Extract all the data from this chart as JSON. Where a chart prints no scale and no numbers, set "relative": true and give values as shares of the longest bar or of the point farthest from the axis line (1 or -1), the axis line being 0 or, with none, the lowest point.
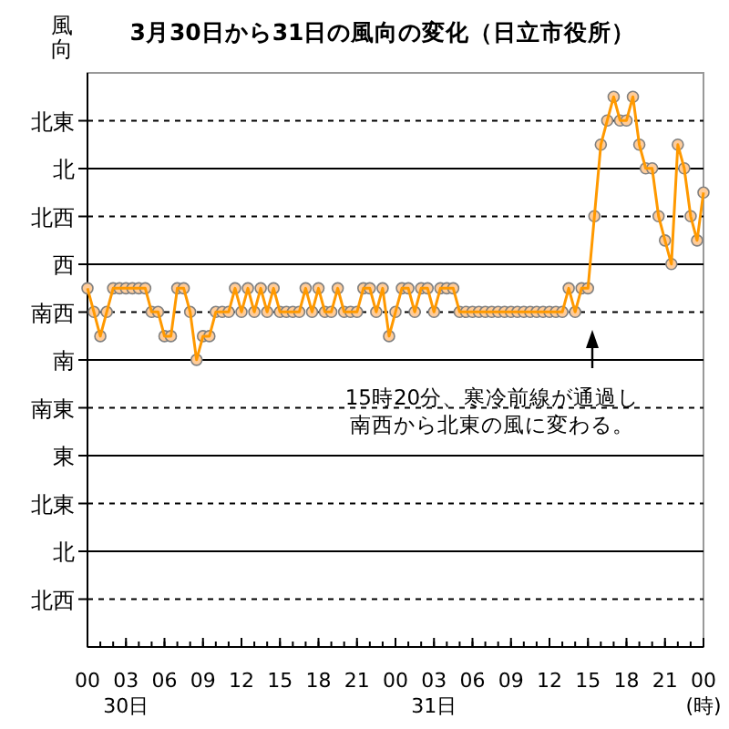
{
  "chart_data": {
    "type": "line",
    "title": "3月30日から31日の風向の変化（日立市役所）",
    "ylabel": "風向",
    "xlim": [
      "--03-30T00:00",
      "--04-01T00:00"
    ],
    "xticks": [
      {
        "value": "--03-30T00:00",
        "label": "00"
      },
      {
        "value": "--03-30T03:00",
        "label": "03\n30日"
      },
      {
        "value": "--03-30T06:00",
        "label": "06"
      },
      {
        "value": "--03-30T09:00",
        "label": "09"
      },
      {
        "value": "--03-30T12:00",
        "label": "12"
      },
      {
        "value": "--03-30T15:00",
        "label": "15"
      },
      {
        "value": "--03-30T18:00",
        "label": "18"
      },
      {
        "value": "--03-30T21:00",
        "label": "21"
      },
      {
        "value": "--03-31T00:00",
        "label": "00"
      },
      {
        "value": "--03-31T03:00",
        "label": "03\n31日"
      },
      {
        "value": "--03-31T06:00",
        "label": "06"
      },
      {
        "value": "--03-31T09:00",
        "label": "09"
      },
      {
        "value": "--03-31T12:00",
        "label": "12"
      },
      {
        "value": "--03-31T15:00",
        "label": "15"
      },
      {
        "value": "--03-31T18:00",
        "label": "18"
      },
      {
        "value": "--03-31T21:00",
        "label": "21"
      },
      {
        "value": "--04-01T00:00",
        "label": "00\n(時)"
      }
    ],
    "y_categories": [
      "北東",
      "北",
      "北西",
      "西",
      "南西",
      "南",
      "南東",
      "東",
      "北東",
      "北",
      "北西"
    ],
    "grid": "y",
    "marker": "circle",
    "line_style": "solid",
    "series": [
      {
        "color": "#ff9900",
        "x": [
          "--03-30T00:00",
          "--03-30T00:30",
          "--03-30T01:00",
          "--03-30T01:30",
          "--03-30T02:00",
          "--03-30T02:30",
          "--03-30T03:00",
          "--03-30T03:30",
          "--03-30T04:00",
          "--03-30T04:30",
          "--03-30T05:00",
          "--03-30T05:30",
          "--03-30T06:00",
          "--03-30T06:30",
          "--03-30T07:00",
          "--03-30T07:30",
          "--03-30T08:00",
          "--03-30T08:30",
          "--03-30T09:00",
          "--03-30T09:30",
          "--03-30T10:00",
          "--03-30T10:30",
          "--03-30T11:00",
          "--03-30T11:30",
          "--03-30T12:00",
          "--03-30T12:30",
          "--03-30T13:00",
          "--03-30T13:30",
          "--03-30T14:00",
          "--03-30T14:30",
          "--03-30T15:00",
          "--03-30T15:30",
          "--03-30T16:00",
          "--03-30T16:30",
          "--03-30T17:00",
          "--03-30T17:30",
          "--03-30T18:00",
          "--03-30T18:30",
          "--03-30T19:00",
          "--03-30T19:30",
          "--03-30T20:00",
          "--03-30T20:30",
          "--03-30T21:00",
          "--03-30T21:30",
          "--03-30T22:00",
          "--03-30T22:30",
          "--03-30T23:00",
          "--03-30T23:30",
          "--03-31T00:00",
          "--03-31T00:30",
          "--03-31T01:00",
          "--03-31T01:30",
          "--03-31T02:00",
          "--03-31T02:30",
          "--03-31T03:00",
          "--03-31T03:30",
          "--03-31T04:00",
          "--03-31T04:30",
          "--03-31T05:00",
          "--03-31T05:30",
          "--03-31T06:00",
          "--03-31T06:30",
          "--03-31T07:00",
          "--03-31T07:30",
          "--03-31T08:00",
          "--03-31T08:30",
          "--03-31T09:00",
          "--03-31T09:30",
          "--03-31T10:00",
          "--03-31T10:30",
          "--03-31T11:00",
          "--03-31T11:30",
          "--03-31T12:00",
          "--03-31T12:30",
          "--03-31T13:00",
          "--03-31T13:30",
          "--03-31T14:00",
          "--03-31T14:30",
          "--03-31T15:00",
          "--03-31T15:30",
          "--03-31T16:00",
          "--03-31T16:30",
          "--03-31T17:00",
          "--03-31T17:30",
          "--03-31T18:00",
          "--03-31T18:30",
          "--03-31T19:00",
          "--03-31T19:30",
          "--03-31T20:00",
          "--03-31T20:30",
          "--03-31T21:00",
          "--03-31T21:30",
          "--03-31T22:00",
          "--03-31T22:30",
          "--03-31T23:00",
          "--03-31T23:30",
          "--04-01T00:00"
        ],
        "values": [
          0.652,
          0.609,
          0.565,
          0.609,
          0.652,
          0.652,
          0.652,
          0.652,
          0.652,
          0.652,
          0.609,
          0.609,
          0.565,
          0.565,
          0.652,
          0.652,
          0.609,
          0.522,
          0.565,
          0.565,
          0.609,
          0.609,
          0.609,
          0.652,
          0.609,
          0.652,
          0.609,
          0.652,
          0.609,
          0.652,
          0.609,
          0.609,
          0.609,
          0.609,
          0.652,
          0.609,
          0.652,
          0.609,
          0.609,
          0.652,
          0.609,
          0.609,
          0.609,
          0.652,
          0.652,
          0.609,
          0.652,
          0.565,
          0.609,
          0.652,
          0.652,
          0.609,
          0.652,
          0.652,
          0.609,
          0.652,
          0.652,
          0.652,
          0.609,
          0.609,
          0.609,
          0.609,
          0.609,
          0.609,
          0.609,
          0.609,
          0.609,
          0.609,
          0.609,
          0.609,
          0.609,
          0.609,
          0.609,
          0.609,
          0.609,
          0.652,
          0.609,
          0.652,
          0.652,
          0.783,
          0.913,
          0.957,
          1,
          0.957,
          0.957,
          1,
          0.913,
          0.87,
          0.87,
          0.783,
          0.739,
          0.696,
          0.913,
          0.87,
          0.783,
          0.739,
          0.826
        ]
      }
    ],
    "relative": true,
    "annotations": [
      "15時20分、寒冷前線が通過し南西から北東の風に変わる。"
    ]
  }
}
